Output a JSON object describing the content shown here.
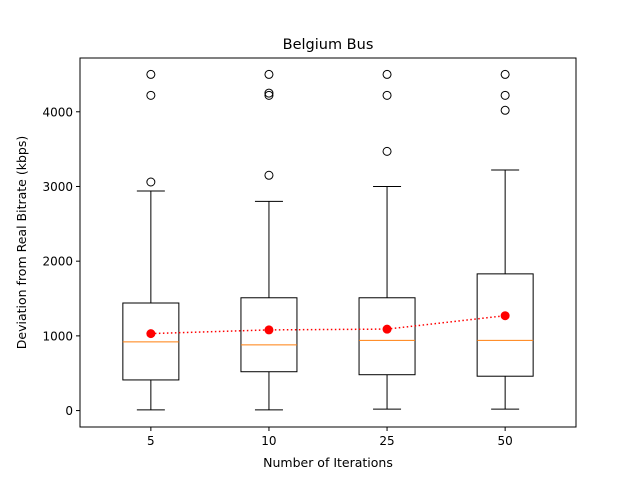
{
  "chart_data": {
    "type": "box",
    "title": "Belgium Bus",
    "xlabel": "Number of Iterations",
    "ylabel": "Deviation from Real Bitrate (kbps)",
    "categories": [
      "5",
      "10",
      "25",
      "50"
    ],
    "ylim": [
      -220,
      4720
    ],
    "yticks": [
      0,
      1000,
      2000,
      3000,
      4000
    ],
    "boxes": [
      {
        "whisker_low": 10,
        "q1": 410,
        "median": 920,
        "q3": 1440,
        "whisker_high": 2940,
        "mean": 1030,
        "outliers": [
          3060,
          4220,
          4500
        ]
      },
      {
        "whisker_low": 10,
        "q1": 520,
        "median": 880,
        "q3": 1510,
        "whisker_high": 2800,
        "mean": 1080,
        "outliers": [
          3150,
          4220,
          4250,
          4500
        ]
      },
      {
        "whisker_low": 20,
        "q1": 480,
        "median": 940,
        "q3": 1510,
        "whisker_high": 3000,
        "mean": 1090,
        "outliers": [
          3470,
          4220,
          4500
        ]
      },
      {
        "whisker_low": 20,
        "q1": 460,
        "median": 940,
        "q3": 1830,
        "whisker_high": 3220,
        "mean": 1270,
        "outliers": [
          4020,
          4220,
          4500
        ]
      }
    ],
    "colors": {
      "box": "#000000",
      "median": "#ff7f0e",
      "mean": "#ff0000"
    },
    "mean_line_style": "dotted",
    "grid": false,
    "legend": "none"
  }
}
